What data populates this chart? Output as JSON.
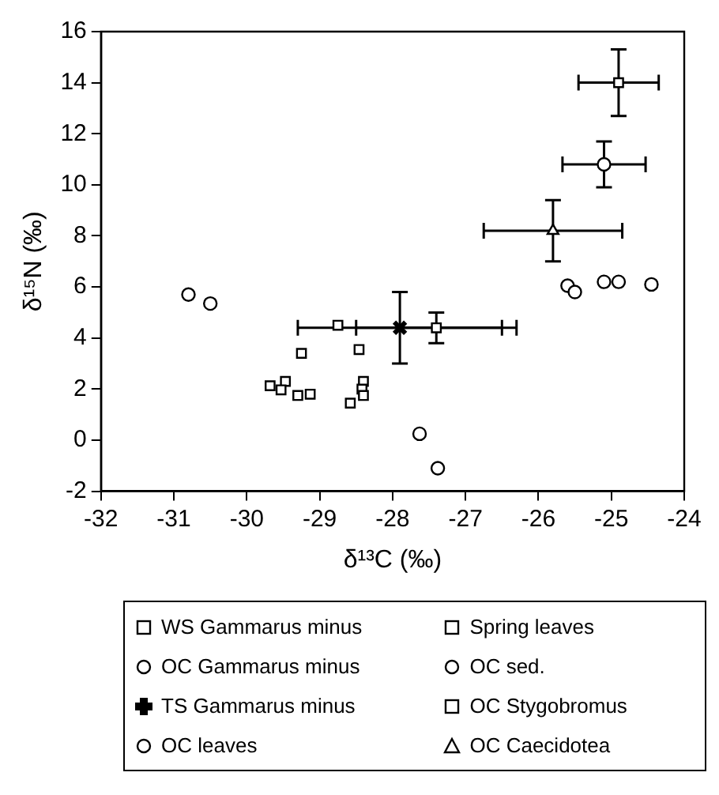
{
  "chart_data": {
    "type": "scatter",
    "xlabel": "δ¹³C (‰)",
    "ylabel": "δ¹⁵N (‰)",
    "xlim": [
      -32,
      -24
    ],
    "xticks": [
      -32,
      -31,
      -30,
      -29,
      -28,
      -27,
      -26,
      -25,
      -24
    ],
    "ylim": [
      -2,
      16
    ],
    "yticks": [
      -2,
      0,
      2,
      4,
      6,
      8,
      10,
      12,
      14,
      16
    ],
    "grid": false,
    "legend": "bottom",
    "series": [
      {
        "name": "WS Gammarus minus",
        "color": "#000000",
        "marker": "square",
        "x": [
          -27.4
        ],
        "values": [
          4.4
        ],
        "errors": [
          0.6
        ],
        "xerrors": [
          1.1
        ]
      },
      {
        "name": "Spring leaves",
        "color": "#000000",
        "marker": "square",
        "x": [
          -28.75,
          -29.25,
          -28.46,
          -29.68,
          -29.47,
          -29.53,
          -29.3,
          -29.13,
          -28.58,
          -28.4,
          -28.42,
          -28.4
        ],
        "values": [
          4.5,
          3.4,
          3.55,
          2.13,
          2.3,
          1.97,
          1.75,
          1.8,
          1.45,
          2.3,
          2.0,
          1.75
        ]
      },
      {
        "name": "OC Gammarus minus",
        "color": "#000000",
        "marker": "circle",
        "x": [
          -25.1
        ],
        "values": [
          10.8
        ],
        "errors": [
          0.9
        ],
        "xerrors": [
          0.57
        ]
      },
      {
        "name": "OC sed.",
        "color": "#000000",
        "marker": "circle",
        "x": [
          -25.6,
          -25.5,
          -25.1,
          -24.9,
          -24.45
        ],
        "values": [
          6.05,
          5.8,
          6.2,
          6.2,
          6.1
        ]
      },
      {
        "name": "TS Gammarus minus",
        "color": "#000000",
        "marker": "cross",
        "x": [
          -27.9
        ],
        "values": [
          4.4
        ],
        "errors": [
          1.4
        ],
        "xerrors": [
          1.4
        ]
      },
      {
        "name": "OC Stygobromus",
        "color": "#000000",
        "marker": "square",
        "x": [
          -24.9
        ],
        "values": [
          14.0
        ],
        "errors": [
          1.3
        ],
        "xerrors": [
          0.55
        ]
      },
      {
        "name": "OC leaves",
        "color": "#000000",
        "marker": "circle",
        "x": [
          -30.8,
          -30.5,
          -27.63,
          -27.38
        ],
        "values": [
          5.7,
          5.35,
          0.25,
          -1.1
        ]
      },
      {
        "name": "OC Caecidotea",
        "color": "#000000",
        "marker": "triangle",
        "x": [
          -25.8
        ],
        "values": [
          8.2
        ],
        "errors": [
          1.2
        ],
        "xerrors": [
          0.95
        ]
      }
    ]
  }
}
